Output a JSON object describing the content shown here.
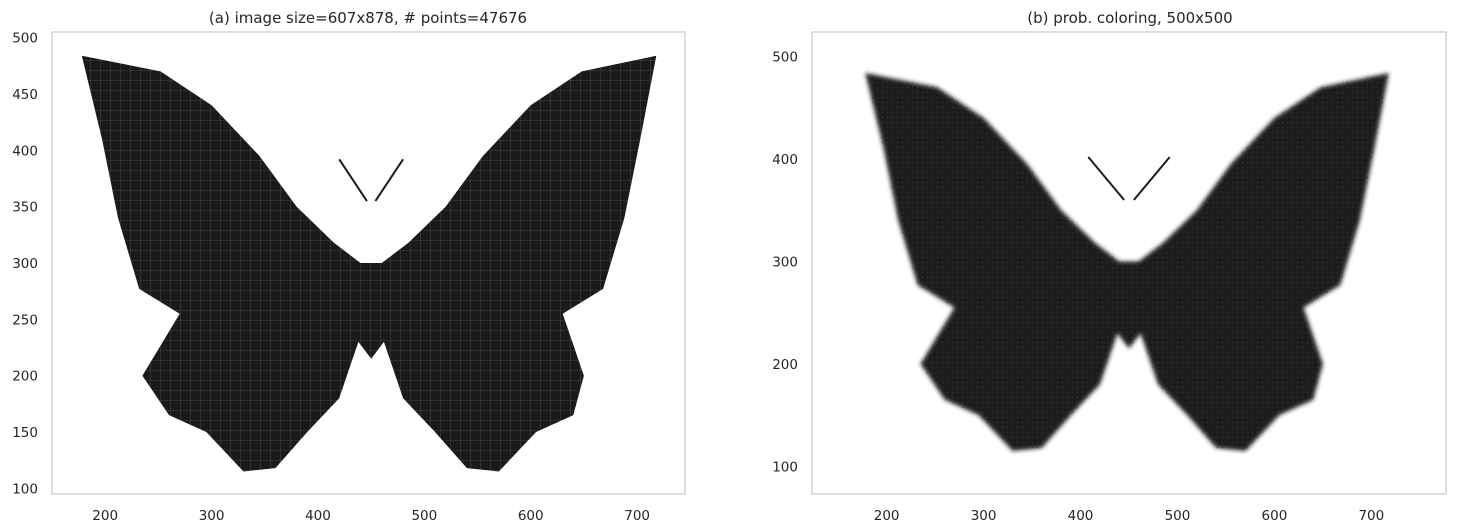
{
  "chart_data": [
    {
      "type": "scatter",
      "title": "(a) image size=607x878, # points=47676",
      "xlabel": "",
      "ylabel": "",
      "xlim": [
        150,
        745
      ],
      "ylim": [
        95,
        505
      ],
      "xticks": [
        200,
        300,
        400,
        500,
        600,
        700
      ],
      "yticks": [
        100,
        150,
        200,
        250,
        300,
        350,
        400,
        450,
        500
      ],
      "grid": false,
      "point_color": "#1a1a1a",
      "shape_outline": [
        [
          178,
          484
        ],
        [
          252,
          470
        ],
        [
          300,
          440
        ],
        [
          345,
          395
        ],
        [
          380,
          350
        ],
        [
          415,
          318
        ],
        [
          440,
          300
        ],
        [
          460,
          300
        ],
        [
          485,
          318
        ],
        [
          520,
          350
        ],
        [
          555,
          395
        ],
        [
          600,
          440
        ],
        [
          648,
          470
        ],
        [
          718,
          484
        ],
        [
          703,
          410
        ],
        [
          688,
          340
        ],
        [
          668,
          277
        ],
        [
          630,
          255
        ],
        [
          650,
          200
        ],
        [
          640,
          165
        ],
        [
          605,
          150
        ],
        [
          570,
          115
        ],
        [
          540,
          118
        ],
        [
          510,
          150
        ],
        [
          480,
          180
        ],
        [
          462,
          230
        ],
        [
          450,
          215
        ],
        [
          438,
          230
        ],
        [
          420,
          180
        ],
        [
          390,
          150
        ],
        [
          360,
          118
        ],
        [
          330,
          115
        ],
        [
          295,
          150
        ],
        [
          260,
          165
        ],
        [
          235,
          200
        ],
        [
          270,
          255
        ],
        [
          232,
          277
        ],
        [
          212,
          340
        ],
        [
          197,
          410
        ]
      ]
    },
    {
      "type": "heatmap",
      "title": "(b) prob. coloring, 500x500",
      "xlabel": "",
      "ylabel": "",
      "xlim": [
        123,
        777
      ],
      "ylim": [
        73,
        524
      ],
      "xticks": [
        200,
        300,
        400,
        500,
        600,
        700
      ],
      "yticks": [
        100,
        200,
        300,
        400,
        500
      ],
      "grid": false,
      "colormap": "gray_r",
      "shape_outline": [
        [
          178,
          484
        ],
        [
          252,
          470
        ],
        [
          300,
          440
        ],
        [
          345,
          395
        ],
        [
          380,
          350
        ],
        [
          415,
          318
        ],
        [
          440,
          300
        ],
        [
          460,
          300
        ],
        [
          485,
          318
        ],
        [
          520,
          350
        ],
        [
          555,
          395
        ],
        [
          600,
          440
        ],
        [
          648,
          470
        ],
        [
          718,
          484
        ],
        [
          703,
          410
        ],
        [
          688,
          340
        ],
        [
          668,
          277
        ],
        [
          630,
          255
        ],
        [
          650,
          200
        ],
        [
          640,
          165
        ],
        [
          605,
          150
        ],
        [
          570,
          115
        ],
        [
          540,
          118
        ],
        [
          510,
          150
        ],
        [
          480,
          180
        ],
        [
          462,
          230
        ],
        [
          450,
          215
        ],
        [
          438,
          230
        ],
        [
          420,
          180
        ],
        [
          390,
          150
        ],
        [
          360,
          118
        ],
        [
          330,
          115
        ],
        [
          295,
          150
        ],
        [
          260,
          165
        ],
        [
          235,
          200
        ],
        [
          270,
          255
        ],
        [
          232,
          277
        ],
        [
          212,
          340
        ],
        [
          197,
          410
        ]
      ]
    }
  ]
}
